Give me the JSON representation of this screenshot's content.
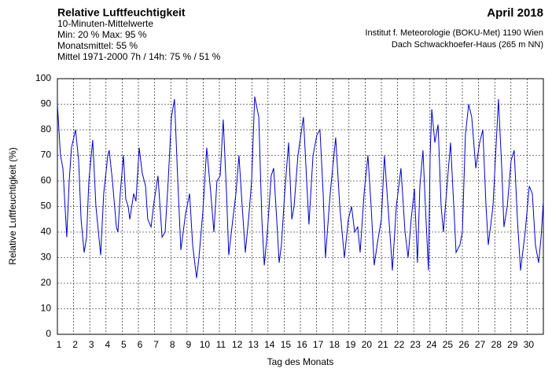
{
  "chart_data": {
    "type": "line",
    "title": "Relative Luftfeuchtigkeit",
    "notes": [
      "10-Minuten-Mittelwerte",
      "Min:  20 %   Max:  95 %",
      "Monatsmittel:  55 %",
      "Mittel 1971-2000 7h / 14h:  75 % / 51 %"
    ],
    "period": "April 2018",
    "source": [
      "Institut f. Meteorologie (BOKU-Met) 1190 Wien",
      "Dach Schwackhoefer-Haus (265 m NN)"
    ],
    "xlabel": "Tag des Monats",
    "ylabel": "Relative Luftfeuchtigkeit (%)",
    "xlim": [
      1,
      31
    ],
    "xticks": [
      1,
      2,
      3,
      4,
      5,
      6,
      7,
      8,
      9,
      10,
      11,
      12,
      13,
      14,
      15,
      16,
      17,
      18,
      19,
      20,
      21,
      22,
      23,
      24,
      25,
      26,
      27,
      28,
      29,
      30
    ],
    "ylim": [
      0,
      100
    ],
    "yticks": [
      0,
      10,
      20,
      30,
      40,
      50,
      60,
      70,
      80,
      90,
      100
    ],
    "grid": true,
    "series": [
      {
        "color": "#0000cc",
        "x": [
          1.0,
          1.19,
          1.34,
          1.58,
          1.73,
          1.87,
          2.12,
          2.31,
          2.46,
          2.65,
          2.8,
          2.94,
          3.18,
          3.38,
          3.67,
          3.86,
          4.11,
          4.2,
          4.4,
          4.64,
          4.74,
          4.88,
          5.08,
          5.22,
          5.37,
          5.47,
          5.71,
          5.85,
          6.05,
          6.24,
          6.44,
          6.58,
          6.78,
          6.97,
          7.21,
          7.46,
          7.65,
          7.84,
          8.04,
          8.23,
          8.43,
          8.62,
          8.91,
          9.16,
          9.35,
          9.59,
          9.74,
          9.98,
          10.22,
          10.47,
          10.66,
          10.85,
          11.05,
          11.24,
          11.44,
          11.58,
          11.83,
          12.02,
          12.21,
          12.41,
          12.6,
          12.8,
          12.99,
          13.18,
          13.43,
          13.62,
          13.77,
          13.96,
          14.2,
          14.35,
          14.54,
          14.69,
          14.83,
          15.03,
          15.27,
          15.47,
          15.61,
          15.85,
          16.19,
          16.39,
          16.53,
          16.78,
          17.02,
          17.21,
          17.41,
          17.55,
          17.84,
          18.18,
          18.43,
          18.72,
          18.96,
          19.16,
          19.35,
          19.54,
          19.69,
          19.93,
          20.17,
          20.37,
          20.56,
          20.76,
          21.0,
          21.19,
          21.58,
          21.68,
          21.92,
          22.21,
          22.46,
          22.65,
          22.84,
          23.04,
          23.23,
          23.38,
          23.57,
          23.72,
          23.91,
          24.01,
          24.11,
          24.3,
          24.5,
          24.69,
          24.83,
          25.08,
          25.27,
          25.47,
          25.61,
          25.85,
          26.0,
          26.19,
          26.39,
          26.58,
          26.83,
          27.07,
          27.26,
          27.46,
          27.6,
          27.89,
          28.09,
          28.23,
          28.43,
          28.57,
          28.77,
          29.01,
          29.2,
          29.4,
          29.59,
          29.88,
          30.13,
          30.32,
          30.51,
          30.71,
          30.86,
          31.0
        ],
        "values": [
          90,
          70,
          65,
          38,
          60,
          73,
          80,
          68,
          45,
          32,
          38,
          60,
          76,
          50,
          31,
          55,
          70,
          72,
          60,
          42,
          40,
          55,
          70,
          53,
          50,
          45,
          55,
          52,
          73,
          63,
          58,
          45,
          42,
          52,
          62,
          38,
          40,
          60,
          85,
          92,
          60,
          33,
          47,
          55,
          35,
          22,
          30,
          48,
          73,
          55,
          40,
          60,
          62,
          84,
          55,
          31,
          45,
          55,
          70,
          50,
          32,
          45,
          60,
          93,
          85,
          45,
          27,
          40,
          62,
          65,
          45,
          28,
          35,
          55,
          75,
          45,
          50,
          70,
          85,
          60,
          43,
          70,
          78,
          80,
          55,
          30,
          55,
          77,
          50,
          30,
          45,
          50,
          40,
          42,
          32,
          55,
          70,
          50,
          27,
          36,
          45,
          70,
          35,
          25,
          50,
          65,
          40,
          30,
          45,
          57,
          28,
          58,
          72,
          50,
          25,
          70,
          88,
          75,
          82,
          50,
          40,
          60,
          75,
          50,
          32,
          35,
          40,
          78,
          90,
          85,
          65,
          75,
          80,
          50,
          35,
          50,
          75,
          92,
          65,
          42,
          50,
          68,
          72,
          45,
          25,
          40,
          58,
          55,
          35,
          28,
          38,
          52
        ]
      }
    ]
  }
}
